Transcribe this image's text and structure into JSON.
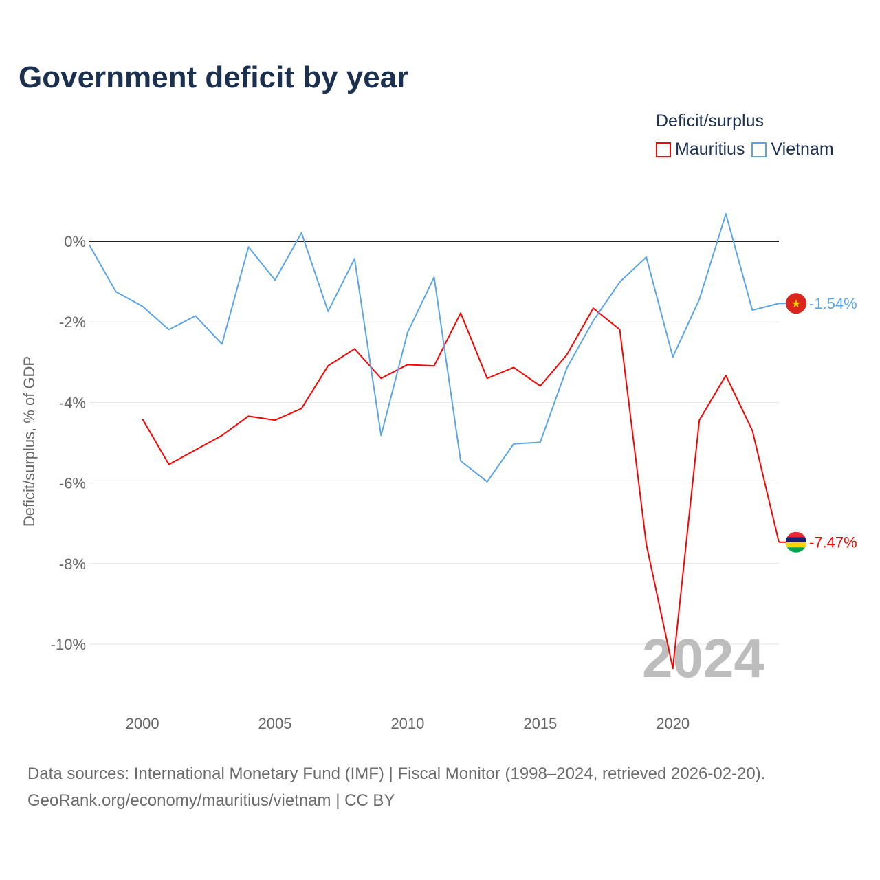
{
  "chart_data": {
    "type": "line",
    "title": "Government deficit by year",
    "xlabel": "",
    "ylabel": "Deficit/surplus, % of GDP",
    "legend_title": "Deficit/surplus",
    "legend_placement": "top-right",
    "xlim": [
      1998,
      2024
    ],
    "ylim": [
      -11.2,
      1.0
    ],
    "x_ticks": [
      2000,
      2005,
      2010,
      2015,
      2020
    ],
    "x_tick_labels": [
      "2000",
      "2005",
      "2010",
      "2015",
      "2020"
    ],
    "y_ticks": [
      0,
      -2,
      -4,
      -6,
      -8,
      -10
    ],
    "y_tick_labels": [
      "0%",
      "-2%",
      "-4%",
      "-6%",
      "-8%",
      "-10%"
    ],
    "watermark": "2024",
    "series": [
      {
        "name": "Mauritius",
        "color": "#ff0000",
        "end_label": "-7.47%",
        "x": [
          2000,
          2001,
          2002,
          2003,
          2004,
          2005,
          2006,
          2007,
          2008,
          2009,
          2010,
          2011,
          2012,
          2013,
          2014,
          2015,
          2016,
          2017,
          2018,
          2019,
          2020,
          2021,
          2022,
          2023,
          2024
        ],
        "values": [
          -4.41,
          -5.54,
          -5.18,
          -4.82,
          -4.34,
          -4.44,
          -4.15,
          -3.09,
          -2.67,
          -3.4,
          -3.06,
          -3.09,
          -1.78,
          -3.4,
          -3.13,
          -3.59,
          -2.82,
          -1.66,
          -2.19,
          -7.52,
          -10.6,
          -4.44,
          -3.33,
          -4.7,
          -7.47
        ]
      },
      {
        "name": "Vietnam",
        "color": "#5aa5e8",
        "end_label": "-1.54%",
        "x": [
          1998,
          1999,
          2000,
          2001,
          2002,
          2003,
          2004,
          2005,
          2006,
          2007,
          2008,
          2009,
          2010,
          2011,
          2012,
          2013,
          2014,
          2015,
          2016,
          2017,
          2018,
          2019,
          2020,
          2021,
          2022,
          2023,
          2024
        ],
        "values": [
          -0.09,
          -1.25,
          -1.61,
          -2.19,
          -1.85,
          -2.55,
          -0.14,
          -0.96,
          0.21,
          -1.74,
          -0.43,
          -4.82,
          -2.26,
          -0.89,
          -5.45,
          -5.97,
          -5.03,
          -4.99,
          -3.15,
          -1.97,
          -1.01,
          -0.39,
          -2.87,
          -1.44,
          0.68,
          -1.71,
          -1.54
        ]
      }
    ]
  },
  "source": {
    "line1": "Data sources: International Monetary Fund (IMF) | Fiscal Monitor (1998–2024, retrieved 2026-02-20).",
    "line2": "GeoRank.org/economy/mauritius/vietnam | CC BY"
  }
}
